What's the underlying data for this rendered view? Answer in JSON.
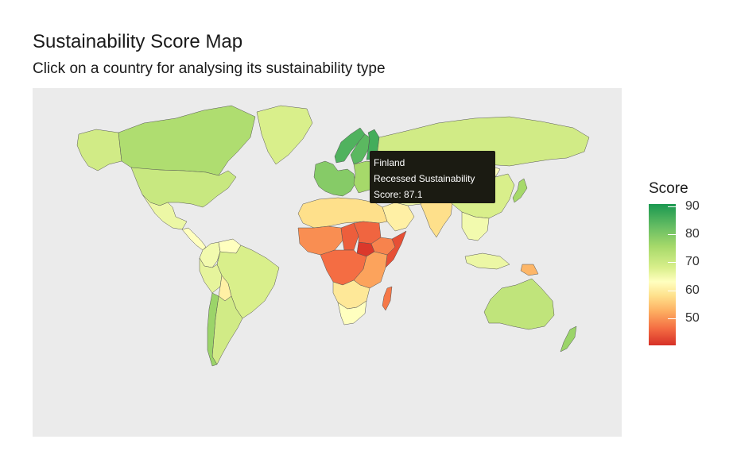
{
  "header": {
    "title": "Sustainability Score Map",
    "subtitle": "Click on a country for analysing its sustainability type"
  },
  "tooltip": {
    "country": "Finland",
    "type": "Recessed Sustainability",
    "score_text": "Score: 87.1"
  },
  "legend": {
    "title": "Score",
    "ticks": [
      "90",
      "80",
      "70",
      "60",
      "50"
    ],
    "colors": {
      "high": "#1a9850",
      "mid_high": "#a6d96a",
      "mid": "#ffffbf",
      "mid_low": "#fdae61",
      "low": "#d73027"
    }
  },
  "map": {
    "background": "#ebebeb",
    "regions": [
      {
        "name": "Canada",
        "score": 77
      },
      {
        "name": "Alaska",
        "score": 73
      },
      {
        "name": "Greenland",
        "score": 72
      },
      {
        "name": "United States",
        "score": 74
      },
      {
        "name": "Mexico",
        "score": 69
      },
      {
        "name": "Central America",
        "score": 66
      },
      {
        "name": "Colombia",
        "score": 68
      },
      {
        "name": "Venezuela",
        "score": 66
      },
      {
        "name": "Brazil",
        "score": 72
      },
      {
        "name": "Peru",
        "score": 70
      },
      {
        "name": "Bolivia",
        "score": 64
      },
      {
        "name": "Argentina",
        "score": 73
      },
      {
        "name": "Chile",
        "score": 79
      },
      {
        "name": "Norway",
        "score": 86
      },
      {
        "name": "Sweden",
        "score": 85
      },
      {
        "name": "Finland",
        "score": 87.1
      },
      {
        "name": "Western Europe",
        "score": 81
      },
      {
        "name": "Eastern Europe",
        "score": 78
      },
      {
        "name": "Russia",
        "score": 73
      },
      {
        "name": "Kazakhstan",
        "score": 70
      },
      {
        "name": "China",
        "score": 72
      },
      {
        "name": "Mongolia",
        "score": 66
      },
      {
        "name": "India",
        "score": 62
      },
      {
        "name": "Middle East",
        "score": 68
      },
      {
        "name": "Saudi Arabia",
        "score": 64
      },
      {
        "name": "North Africa",
        "score": 62
      },
      {
        "name": "Sahel",
        "score": 53
      },
      {
        "name": "Chad",
        "score": 48
      },
      {
        "name": "Sudan",
        "score": 49
      },
      {
        "name": "South Sudan",
        "score": 43
      },
      {
        "name": "Ethiopia",
        "score": 52
      },
      {
        "name": "Somalia",
        "score": 46
      },
      {
        "name": "Central Africa",
        "score": 50
      },
      {
        "name": "East Africa",
        "score": 55
      },
      {
        "name": "Southern Africa",
        "score": 63
      },
      {
        "name": "South Africa",
        "score": 66
      },
      {
        "name": "Madagascar",
        "score": 51
      },
      {
        "name": "Southeast Asia",
        "score": 68
      },
      {
        "name": "Indonesia",
        "score": 69
      },
      {
        "name": "Papua New Guinea",
        "score": 57
      },
      {
        "name": "Japan",
        "score": 78
      },
      {
        "name": "Australia",
        "score": 75
      },
      {
        "name": "New Zealand",
        "score": 79
      }
    ]
  }
}
